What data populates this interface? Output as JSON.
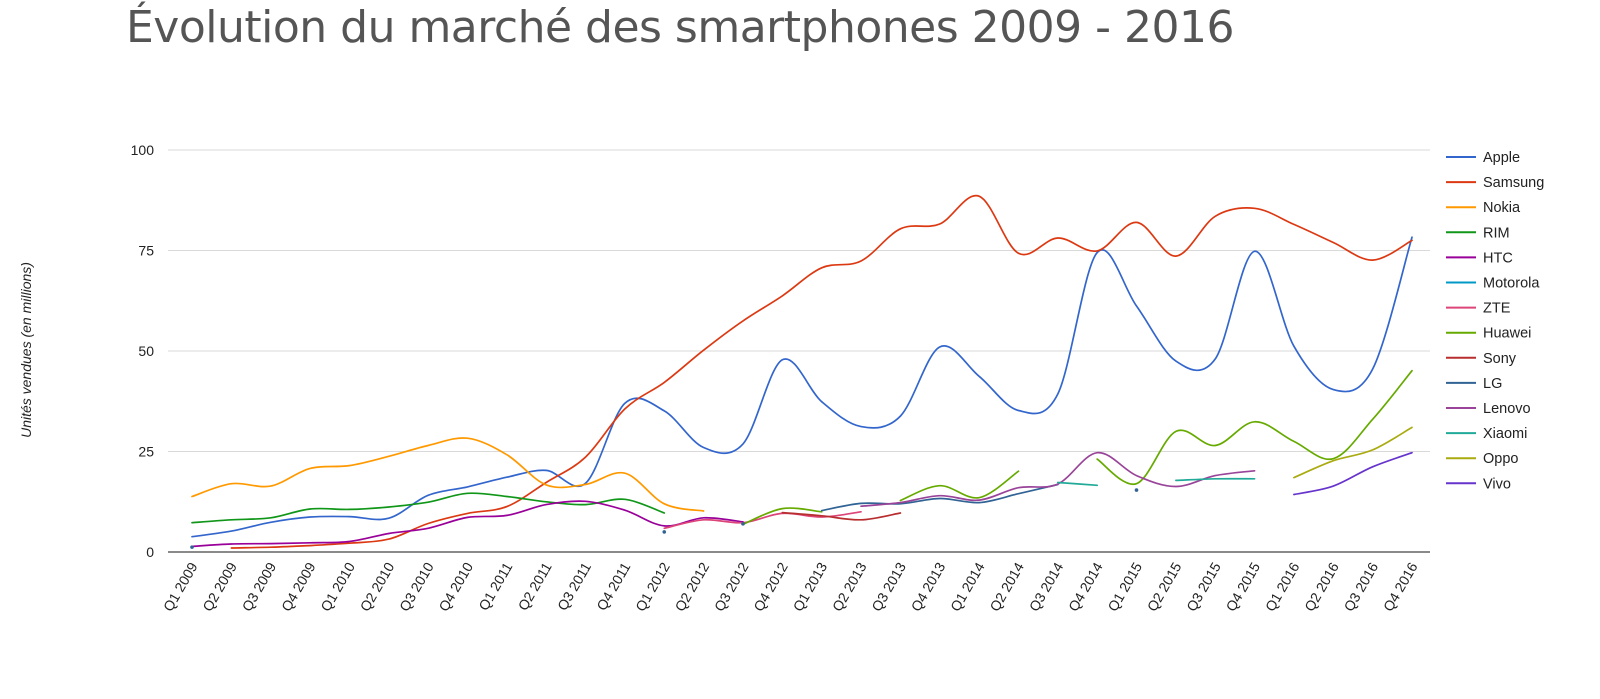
{
  "chart_data": {
    "type": "line",
    "title": "Évolution du marché des smartphones 2009 - 2016",
    "ylabel": "Unités vendues (en millions)",
    "xlabel": "",
    "ylim": [
      0,
      100
    ],
    "yticks": [
      0,
      25,
      50,
      75,
      100
    ],
    "grid": true,
    "legend_position": "right",
    "categories": [
      "Q1 2009",
      "Q2 2009",
      "Q3 2009",
      "Q4 2009",
      "Q1 2010",
      "Q2 2010",
      "Q3 2010",
      "Q4 2010",
      "Q1 2011",
      "Q2 2011",
      "Q3 2011",
      "Q4 2011",
      "Q1 2012",
      "Q2 2012",
      "Q3 2012",
      "Q4 2012",
      "Q1 2013",
      "Q2 2013",
      "Q3 2013",
      "Q4 2013",
      "Q1 2014",
      "Q2 2014",
      "Q3 2014",
      "Q4 2014",
      "Q1 2015",
      "Q2 2015",
      "Q3 2015",
      "Q4 2015",
      "Q1 2016",
      "Q2 2016",
      "Q3 2016",
      "Q4 2016"
    ],
    "series": [
      {
        "name": "Apple",
        "color": "#3366cc",
        "values": [
          3.8,
          5.2,
          7.4,
          8.7,
          8.8,
          8.4,
          14.1,
          16.2,
          18.6,
          20.3,
          17.1,
          37.0,
          35.1,
          26.0,
          26.9,
          47.8,
          37.4,
          31.2,
          33.8,
          51.0,
          43.7,
          35.2,
          39.3,
          74.5,
          61.2,
          47.5,
          48.0,
          74.8,
          51.2,
          40.4,
          45.5,
          78.3
        ]
      },
      {
        "name": "Samsung",
        "color": "#dc3912",
        "values": [
          null,
          1.0,
          1.2,
          1.6,
          2.2,
          3.2,
          7.1,
          9.6,
          11.3,
          17.3,
          23.6,
          35.6,
          42.2,
          50.2,
          57.5,
          63.7,
          70.7,
          72.4,
          80.4,
          81.6,
          88.5,
          74.3,
          78.1,
          74.9,
          82.0,
          73.6,
          83.5,
          85.5,
          81.5,
          77.0,
          72.6,
          77.5
        ]
      },
      {
        "name": "Nokia",
        "color": "#ff9900",
        "values": [
          13.8,
          17.0,
          16.4,
          20.8,
          21.5,
          23.8,
          26.5,
          28.3,
          24.2,
          16.7,
          16.8,
          19.6,
          12.0,
          10.2,
          null,
          null,
          null,
          null,
          null,
          null,
          null,
          null,
          null,
          null,
          null,
          null,
          null,
          null,
          null,
          null,
          null,
          null
        ]
      },
      {
        "name": "RIM",
        "color": "#109618",
        "values": [
          7.3,
          8.0,
          8.5,
          10.7,
          10.6,
          11.2,
          12.4,
          14.6,
          13.8,
          12.5,
          11.8,
          13.1,
          9.7,
          null,
          null,
          null,
          null,
          null,
          null,
          null,
          null,
          null,
          null,
          null,
          null,
          null,
          null,
          null,
          null,
          null,
          null,
          null
        ]
      },
      {
        "name": "HTC",
        "color": "#990099",
        "values": [
          1.4,
          2.0,
          2.1,
          2.3,
          2.6,
          4.6,
          5.9,
          8.6,
          9.1,
          11.8,
          12.6,
          10.4,
          6.5,
          8.5,
          7.5,
          null,
          null,
          null,
          null,
          null,
          null,
          null,
          null,
          null,
          null,
          null,
          null,
          null,
          null,
          null,
          null,
          null
        ]
      },
      {
        "name": "Motorola",
        "color": "#0099c6",
        "values": [
          null,
          null,
          null,
          null,
          null,
          null,
          null,
          null,
          null,
          null,
          null,
          null,
          null,
          null,
          null,
          null,
          null,
          null,
          null,
          null,
          null,
          null,
          null,
          null,
          null,
          null,
          null,
          null,
          null,
          null,
          null,
          null
        ]
      },
      {
        "name": "ZTE",
        "color": "#dd4477",
        "values": [
          null,
          null,
          null,
          null,
          null,
          null,
          null,
          null,
          null,
          null,
          null,
          null,
          5.9,
          8.0,
          7.3,
          9.6,
          8.7,
          10.0,
          null,
          null,
          null,
          null,
          null,
          null,
          null,
          null,
          null,
          null,
          null,
          null,
          null,
          null
        ]
      },
      {
        "name": "Huawei",
        "color": "#66aa00",
        "values": [
          null,
          null,
          null,
          null,
          null,
          null,
          null,
          null,
          null,
          null,
          null,
          null,
          null,
          null,
          6.9,
          10.8,
          10.0,
          null,
          12.8,
          16.5,
          13.5,
          20.1,
          null,
          23.1,
          17.0,
          30.0,
          26.5,
          32.4,
          27.5,
          23.2,
          33.0,
          45.1
        ]
      },
      {
        "name": "Sony",
        "color": "#b82e2e",
        "values": [
          null,
          null,
          null,
          null,
          null,
          null,
          null,
          null,
          null,
          null,
          null,
          null,
          null,
          null,
          null,
          9.8,
          9.0,
          8.0,
          9.7,
          null,
          null,
          null,
          null,
          null,
          null,
          null,
          null,
          null,
          null,
          null,
          null,
          null
        ]
      },
      {
        "name": "LG",
        "color": "#316395",
        "values": [
          1.2,
          null,
          null,
          null,
          null,
          null,
          null,
          null,
          null,
          null,
          null,
          null,
          5.0,
          null,
          7.0,
          null,
          10.3,
          12.1,
          12.0,
          13.3,
          12.3,
          14.5,
          16.8,
          null,
          15.4,
          null,
          null,
          null,
          null,
          null,
          null,
          null
        ]
      },
      {
        "name": "Lenovo",
        "color": "#994499",
        "values": [
          null,
          null,
          null,
          null,
          null,
          null,
          null,
          null,
          null,
          null,
          null,
          null,
          null,
          null,
          null,
          null,
          null,
          11.4,
          12.3,
          14.0,
          12.9,
          16.0,
          16.9,
          24.7,
          19.0,
          16.3,
          19.0,
          20.2,
          null,
          null,
          null,
          null
        ]
      },
      {
        "name": "Xiaomi",
        "color": "#22aa99",
        "values": [
          null,
          null,
          null,
          null,
          null,
          null,
          null,
          null,
          null,
          null,
          null,
          null,
          null,
          null,
          null,
          null,
          null,
          null,
          null,
          null,
          null,
          null,
          17.3,
          16.6,
          null,
          17.8,
          18.2,
          18.2,
          null,
          null,
          null,
          null
        ]
      },
      {
        "name": "Oppo",
        "color": "#aaaa11",
        "values": [
          null,
          null,
          null,
          null,
          null,
          null,
          null,
          null,
          null,
          null,
          null,
          null,
          null,
          null,
          null,
          null,
          null,
          null,
          null,
          null,
          null,
          null,
          null,
          null,
          null,
          null,
          null,
          null,
          18.5,
          22.7,
          25.4,
          31.0
        ]
      },
      {
        "name": "Vivo",
        "color": "#6633cc",
        "values": [
          null,
          null,
          null,
          null,
          null,
          null,
          null,
          null,
          null,
          null,
          null,
          null,
          null,
          null,
          null,
          null,
          null,
          null,
          null,
          null,
          null,
          null,
          null,
          null,
          null,
          null,
          null,
          null,
          14.3,
          16.4,
          21.2,
          24.7
        ]
      }
    ]
  }
}
